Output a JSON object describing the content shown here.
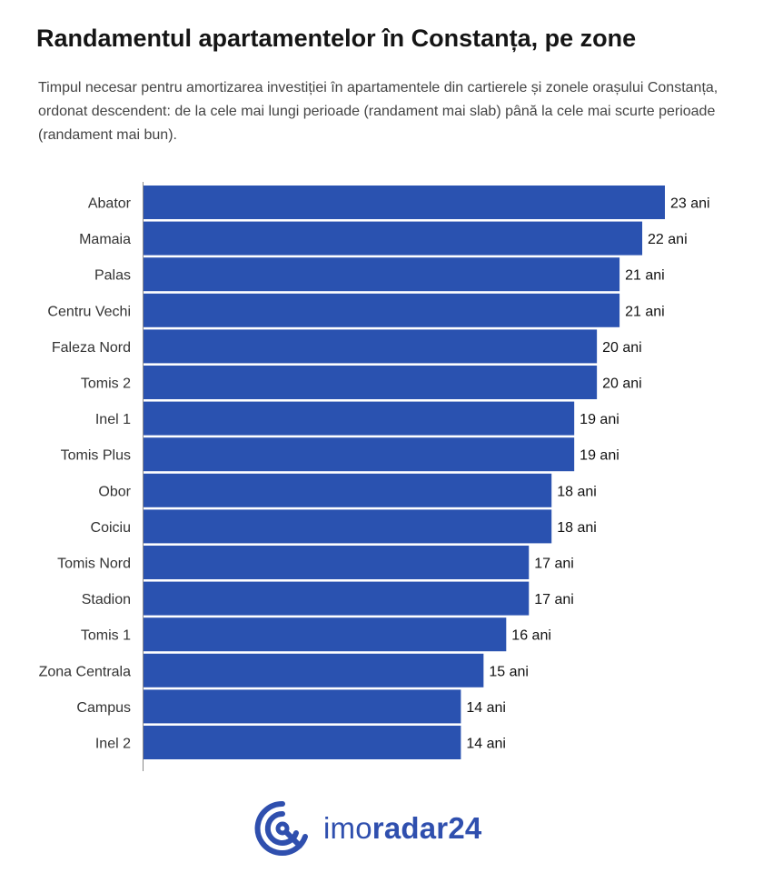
{
  "header": {
    "title": "Randamentul apartamentelor în Constanța, pe zone",
    "subtitle": "Timpul necesar pentru amortizarea investiției în apartamentele din cartierele și zonele orașului Constanța, ordonat descendent: de la cele mai lungi perioade (randament mai slab) până la cele mai scurte perioade (randament mai bun)."
  },
  "chart_data": {
    "type": "bar",
    "orientation": "horizontal",
    "categories": [
      "Abator",
      "Mamaia",
      "Palas",
      "Centru Vechi",
      "Faleza Nord",
      "Tomis 2",
      "Inel 1",
      "Tomis Plus",
      "Obor",
      "Coiciu",
      "Tomis Nord",
      "Stadion",
      "Tomis 1",
      "Zona Centrala",
      "Campus",
      "Inel 2"
    ],
    "values": [
      23,
      22,
      21,
      21,
      20,
      20,
      19,
      19,
      18,
      18,
      17,
      17,
      16,
      15,
      14,
      14
    ],
    "value_labels": [
      "23 ani",
      "22 ani",
      "21 ani",
      "21 ani",
      "20 ani",
      "20 ani",
      "19 ani",
      "19 ani",
      "18 ani",
      "18 ani",
      "17 ani",
      "17 ani",
      "16 ani",
      "15 ani",
      "14 ani",
      "14 ani"
    ],
    "xlim": [
      0,
      23
    ],
    "grid": false,
    "bar_color": "#2a52b0"
  },
  "logo": {
    "light": "imo",
    "bold": "radar24",
    "icon": "radar-logo-icon",
    "color": "#2f4fae"
  }
}
